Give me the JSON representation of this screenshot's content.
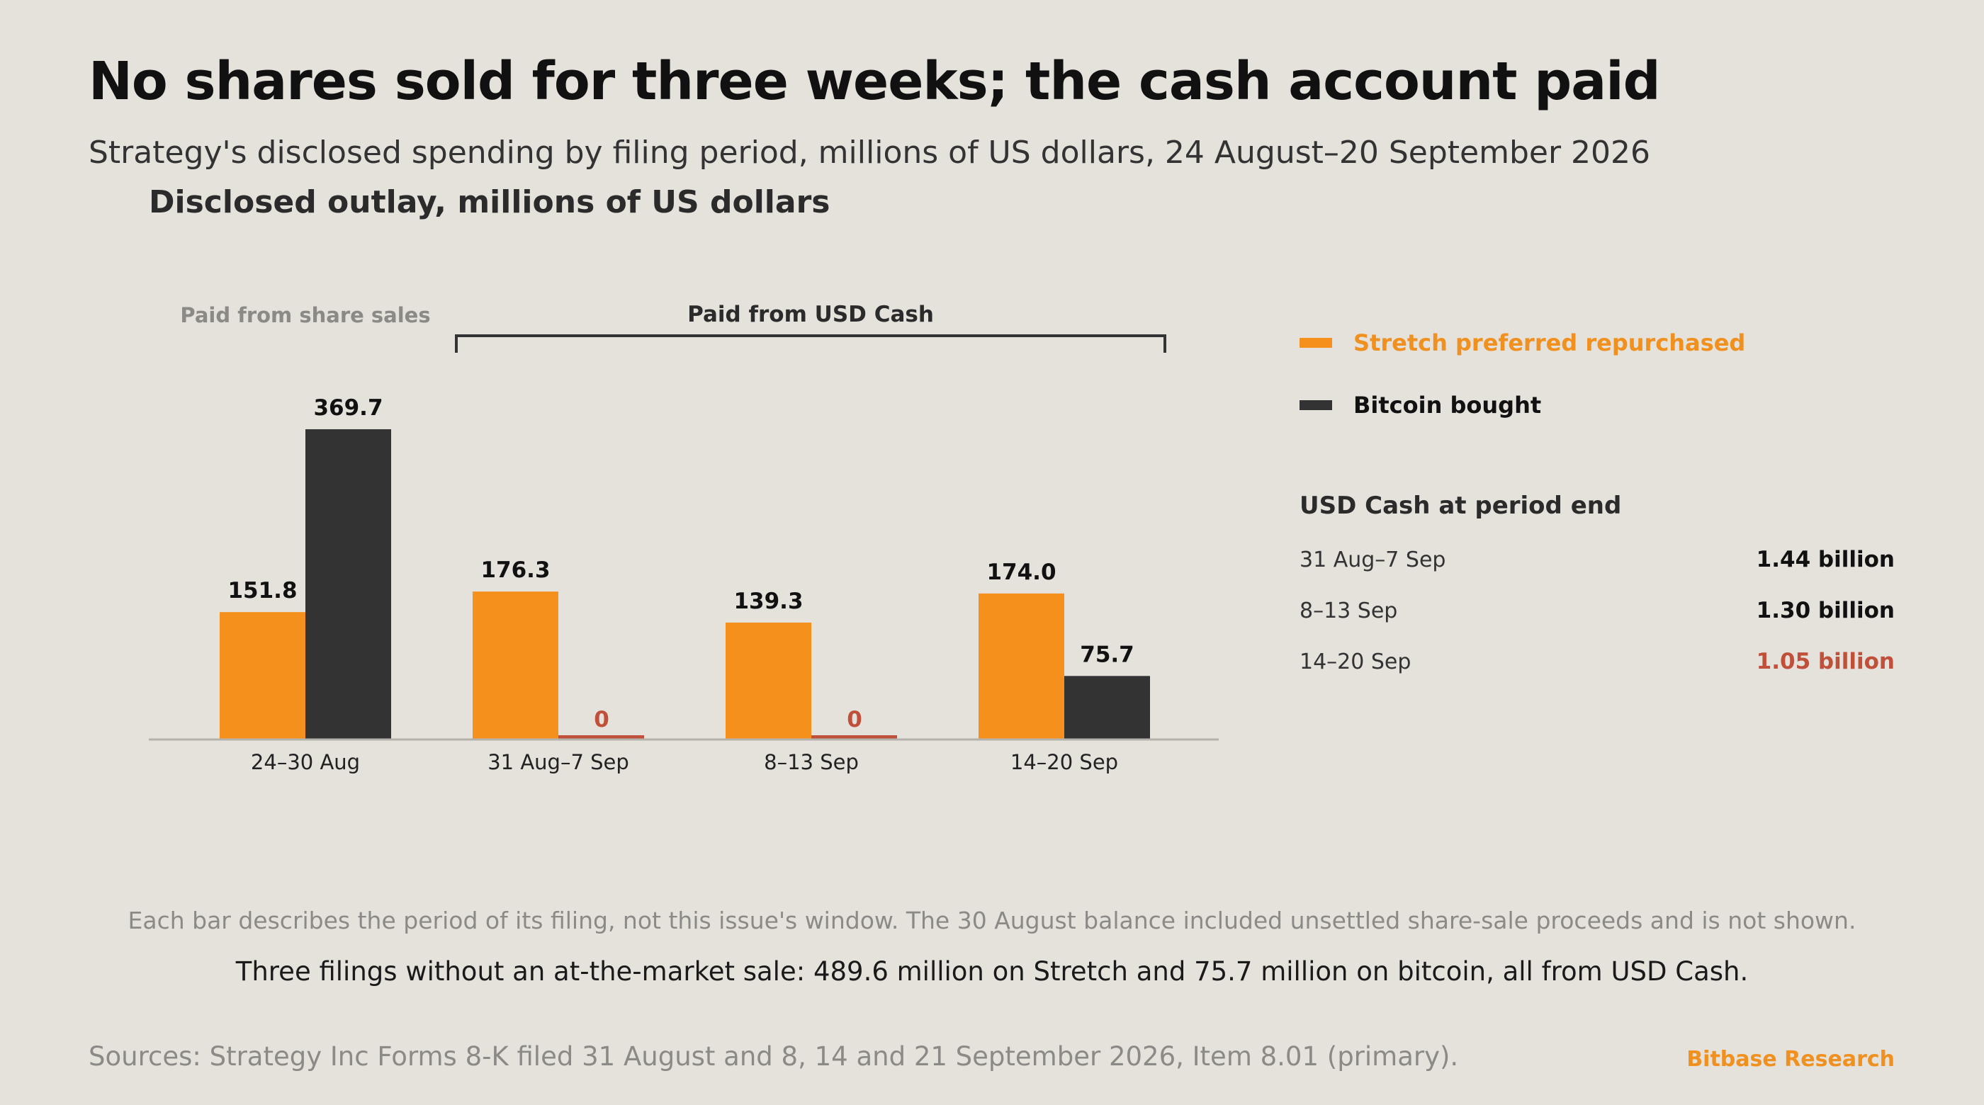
{
  "title": "No shares sold for three weeks; the cash account paid",
  "subtitle": "Strategy's disclosed spending by filing period, millions of US dollars, 24 August–20 September 2026",
  "colors": {
    "stretch": "#f5901c",
    "bitcoin": "#333333",
    "zero": "#c0503a",
    "axis": "#b5b1ab",
    "muted": "#8c8a86",
    "brand": "#f0901e",
    "warning": "#c0503a"
  },
  "chart_data": {
    "type": "bar",
    "title": "",
    "ylabel": "Disclosed outlay, millions of US dollars",
    "xlabel": "",
    "categories": [
      "24–30 Aug",
      "31 Aug–7 Sep",
      "8–13 Sep",
      "14–20 Sep"
    ],
    "series": [
      {
        "name": "Stretch preferred repurchased",
        "values": [
          151.8,
          176.3,
          139.3,
          174.0
        ],
        "labels": [
          "151.8",
          "176.3",
          "139.3",
          "174.0"
        ]
      },
      {
        "name": "Bitcoin bought",
        "values": [
          369.7,
          0,
          0,
          75.7
        ],
        "labels": [
          "369.7",
          "0",
          "0",
          "75.7"
        ]
      }
    ],
    "ylim": [
      0,
      369.7
    ],
    "grid": false,
    "legend_position": "right",
    "group_annotations": [
      {
        "label": "Paid from share sales",
        "categories": [
          "24–30 Aug"
        ],
        "style": "muted"
      },
      {
        "label": "Paid from USD Cash",
        "categories": [
          "31 Aug–7 Sep",
          "8–13 Sep",
          "14–20 Sep"
        ],
        "style": "bracket"
      }
    ]
  },
  "cash_table": {
    "heading": "USD Cash at period end",
    "rows": [
      {
        "period": "31 Aug–7 Sep",
        "value": "1.44 billion",
        "highlight": false
      },
      {
        "period": "8–13 Sep",
        "value": "1.30 billion",
        "highlight": false
      },
      {
        "period": "14–20 Sep",
        "value": "1.05 billion",
        "highlight": true
      }
    ]
  },
  "note": "Each bar describes the period of its filing, not this issue's window. The 30 August balance included unsettled share-sale proceeds and is not shown.",
  "takeaway": "Three filings without an at-the-market sale: 489.6 million on Stretch and 75.7 million on bitcoin, all from USD Cash.",
  "sources": "Sources: Strategy Inc Forms 8-K filed 31 August and 8, 14 and 21 September 2026, Item 8.01 (primary).",
  "brand": "Bitbase Research"
}
